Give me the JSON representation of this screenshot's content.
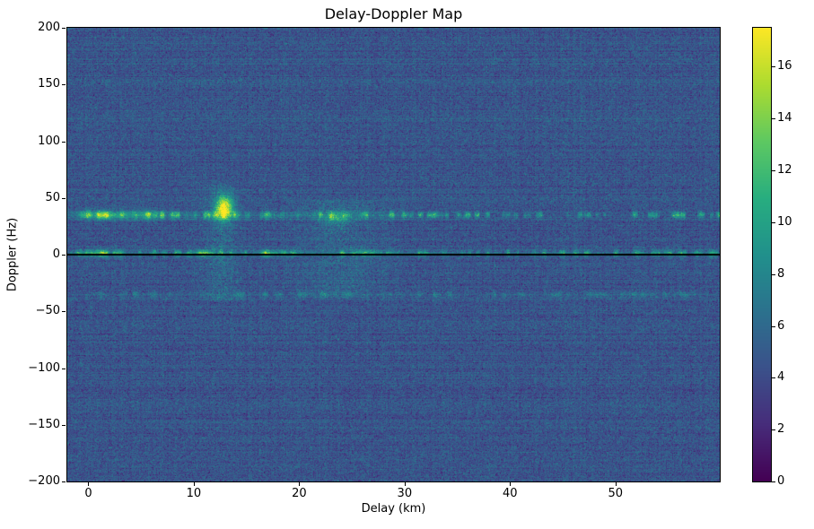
{
  "chart_data": {
    "type": "heatmap",
    "title": "Delay-Doppler Map",
    "xlabel": "Delay (km)",
    "ylabel": "Doppler (Hz)",
    "x_range": [
      -2,
      59.9
    ],
    "y_range": [
      -200,
      200
    ],
    "x_ticks": [
      0,
      10,
      20,
      30,
      40,
      50
    ],
    "y_ticks": [
      200,
      150,
      100,
      50,
      0,
      -50,
      -100,
      -150,
      -200
    ],
    "grid": false,
    "legend": "none",
    "colormap": {
      "name": "viridis",
      "stops": [
        [
          0,
          "#440154"
        ],
        [
          0.125,
          "#472d7b"
        ],
        [
          0.25,
          "#3b528b"
        ],
        [
          0.375,
          "#2c728e"
        ],
        [
          0.5,
          "#21918c"
        ],
        [
          0.625,
          "#28ae80"
        ],
        [
          0.75,
          "#5ec962"
        ],
        [
          0.875,
          "#addc30"
        ],
        [
          1,
          "#fde725"
        ]
      ]
    },
    "colorbar": {
      "min": 0,
      "max": 17.5,
      "ticks": [
        0,
        2,
        4,
        6,
        8,
        10,
        12,
        14,
        16
      ],
      "position": "right"
    },
    "background_noise": {
      "seed": 42,
      "mean": 4.6,
      "std": 1.15,
      "row_streak_std": 0.35,
      "col_streak_std": 0.18
    },
    "features": [
      {
        "kind": "band",
        "label": "clutter-ridge-plus-35hz",
        "doppler": 35,
        "width_hz": 5.5,
        "delay_range": [
          -2,
          30
        ],
        "amp": 7,
        "dash_scale": 1.3,
        "dash_min": 0.18
      },
      {
        "kind": "band",
        "label": "clutter-ridge-plus-35hz-far",
        "doppler": 35,
        "width_hz": 4.5,
        "delay_range": [
          30,
          60
        ],
        "amp": 4.5,
        "dash_scale": 2.2,
        "dash_min": 0
      },
      {
        "kind": "band",
        "label": "zero-doppler-ridge",
        "doppler": 1,
        "width_hz": 5,
        "delay_range": [
          -2,
          60
        ],
        "amp": 5.5,
        "dash_scale": 1.4,
        "dash_min": 0.25
      },
      {
        "kind": "band",
        "label": "clutter-ridge-minus-35hz",
        "doppler": -35,
        "width_hz": 4.5,
        "delay_range": [
          -2,
          60
        ],
        "amp": 2.2,
        "dash_scale": 1.6,
        "dash_min": 0.08
      },
      {
        "kind": "blob",
        "label": "bright-target-return",
        "delay": 12.9,
        "doppler": 41,
        "amp": 13,
        "sigma_delay": 0.55,
        "sigma_doppler": 7
      },
      {
        "kind": "blob",
        "label": "ridge-hotspot",
        "delay": 1.5,
        "doppler": 35,
        "amp": 5,
        "sigma_delay": 1.6,
        "sigma_doppler": 3
      },
      {
        "kind": "blob",
        "label": "ridge-hotspot",
        "delay": 5.5,
        "doppler": 35,
        "amp": 4,
        "sigma_delay": 1.2,
        "sigma_doppler": 3
      },
      {
        "kind": "blob",
        "label": "ridge-hotspot",
        "delay": 23.5,
        "doppler": 32,
        "amp": 4,
        "sigma_delay": 0.8,
        "sigma_doppler": 4
      },
      {
        "kind": "blob",
        "label": "zero-line-hotspot",
        "delay": 11,
        "doppler": 1,
        "amp": 7,
        "sigma_delay": 0.6,
        "sigma_doppler": 2.2
      },
      {
        "kind": "blob",
        "label": "zero-line-hotspot",
        "delay": 0.8,
        "doppler": 1,
        "amp": 5.5,
        "sigma_delay": 0.9,
        "sigma_doppler": 2.2
      },
      {
        "kind": "blob",
        "label": "zero-line-hotspot",
        "delay": 17,
        "doppler": 1,
        "amp": 5,
        "sigma_delay": 0.6,
        "sigma_doppler": 2.2
      },
      {
        "kind": "vstreak",
        "label": "range-smear",
        "delay": 12.6,
        "doppler_range": [
          -40,
          62
        ],
        "amp": 1.7,
        "sigma_delay": 1.1
      },
      {
        "kind": "vstreak",
        "label": "range-smear",
        "delay": 24,
        "doppler_range": [
          -38,
          48
        ],
        "amp": 1.4,
        "sigma_delay": 2.6
      },
      {
        "kind": "hline",
        "label": "zero-doppler-line",
        "doppler": 0,
        "color": "#000000",
        "thickness_px": 2
      }
    ]
  }
}
